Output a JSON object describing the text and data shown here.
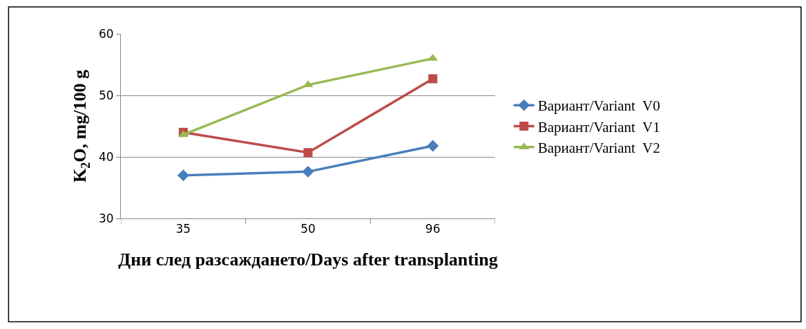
{
  "chart_data": {
    "type": "line",
    "xlabel": "Дни след разсаждането/Days after transplanting",
    "ylabel": "K$_{2}$O, mg/100 g",
    "categories": [
      "35",
      "50",
      "96"
    ],
    "series": [
      {
        "name": "Вариант/Variant  V0",
        "color": "#4a7ebb",
        "values": [
          37.0,
          37.6,
          41.8
        ],
        "marker": "diamond"
      },
      {
        "name": "Вариант/Variant  V1",
        "color": "#be4b48",
        "values": [
          44.0,
          40.7,
          52.7
        ],
        "marker": "square"
      },
      {
        "name": "Вариант/Variant  V2",
        "color": "#98b954",
        "values": [
          43.6,
          51.7,
          56.0
        ],
        "marker": "triangle"
      }
    ],
    "ylim": [
      30,
      60
    ],
    "yticks": [
      30,
      40,
      50,
      60
    ],
    "grid": "y",
    "legend": "right",
    "line_style": "solid"
  }
}
